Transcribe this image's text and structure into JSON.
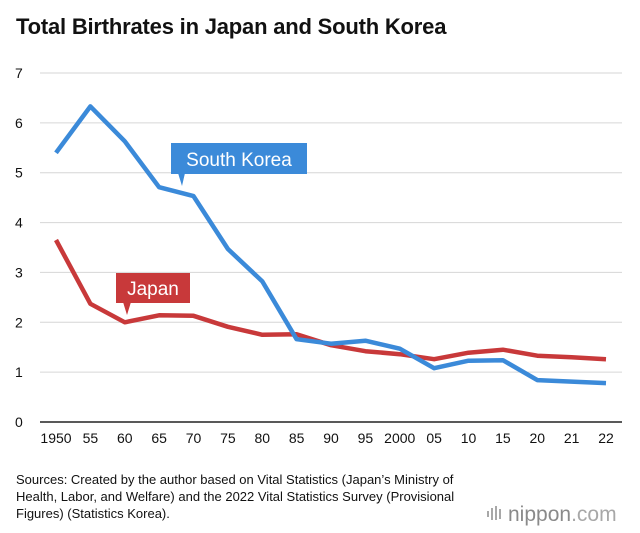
{
  "title": "Total Birthrates in Japan and South Korea",
  "chart_data": {
    "type": "line",
    "title": "Total Birthrates in Japan and South Korea",
    "xlabel": "",
    "ylabel": "",
    "categories": [
      "1950",
      "55",
      "60",
      "65",
      "70",
      "75",
      "80",
      "85",
      "90",
      "95",
      "2000",
      "05",
      "10",
      "15",
      "20",
      "21",
      "22"
    ],
    "ylim": [
      0,
      7
    ],
    "yticks": [
      "0",
      "1",
      "2",
      "3",
      "4",
      "5",
      "6",
      "7"
    ],
    "grid": true,
    "series": [
      {
        "name": "South Korea",
        "color": "#3b8ad9",
        "values": [
          5.4,
          6.33,
          5.63,
          4.71,
          4.53,
          3.47,
          2.82,
          1.66,
          1.57,
          1.63,
          1.47,
          1.08,
          1.23,
          1.24,
          0.84,
          0.81,
          0.78
        ]
      },
      {
        "name": "Japan",
        "color": "#c8393a",
        "values": [
          3.65,
          2.37,
          2.0,
          2.14,
          2.13,
          1.91,
          1.75,
          1.76,
          1.54,
          1.42,
          1.36,
          1.26,
          1.39,
          1.45,
          1.33,
          1.3,
          1.26
        ]
      }
    ]
  },
  "labels": {
    "south_korea": "South Korea",
    "japan": "Japan"
  },
  "footer": {
    "sources": "Sources: Created by the author based on Vital Statistics (Japan’s Ministry of Health, Labor, and Welfare) and the 2022 Vital Statistics Survey (Provisional Figures) (Statistics Korea).",
    "brand_main": "nippon",
    "brand_suffix": ".com"
  }
}
